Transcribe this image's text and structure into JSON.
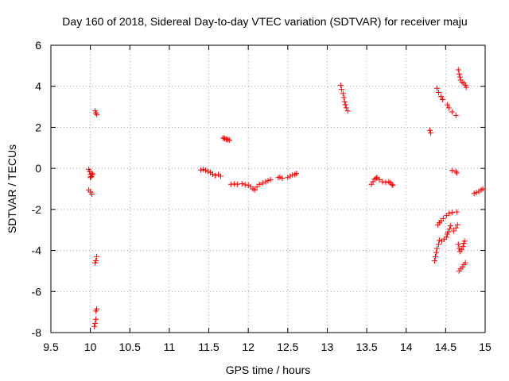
{
  "chart_data": {
    "type": "scatter",
    "title": "Day 160 of 2018, Sidereal Day-to-day VTEC variation (SDTVAR) for receiver maju",
    "xlabel": "GPS time / hours",
    "ylabel": "SDTVAR / TECUs",
    "xlim": [
      9.5,
      15
    ],
    "ylim": [
      -8,
      6
    ],
    "xticks": [
      "9.5",
      "10",
      "10.5",
      "11",
      "11.5",
      "12",
      "12.5",
      "13",
      "13.5",
      "14",
      "14.5",
      "15"
    ],
    "yticks": [
      "-8",
      "-6",
      "-4",
      "-2",
      "0",
      "2",
      "4",
      "6"
    ],
    "grid": true,
    "marker": "+",
    "color": "#ff0000",
    "series": [
      {
        "name": "SDTVAR",
        "points": [
          [
            9.98,
            -0.05
          ],
          [
            9.99,
            -0.15
          ],
          [
            10.0,
            -0.3
          ],
          [
            10.01,
            -0.4
          ],
          [
            10.02,
            -0.25
          ],
          [
            10.0,
            -0.45
          ],
          [
            10.03,
            -0.3
          ],
          [
            9.98,
            -1.05
          ],
          [
            10.0,
            -1.15
          ],
          [
            10.02,
            -1.25
          ],
          [
            10.06,
            2.8
          ],
          [
            10.07,
            2.7
          ],
          [
            10.08,
            2.62
          ],
          [
            10.06,
            -4.6
          ],
          [
            10.07,
            -4.5
          ],
          [
            10.08,
            -4.3
          ],
          [
            10.07,
            -6.95
          ],
          [
            10.08,
            -6.85
          ],
          [
            10.07,
            -7.35
          ],
          [
            10.06,
            -7.55
          ],
          [
            10.05,
            -7.7
          ],
          [
            11.4,
            -0.08
          ],
          [
            11.43,
            -0.05
          ],
          [
            11.46,
            -0.1
          ],
          [
            11.49,
            -0.15
          ],
          [
            11.52,
            -0.2
          ],
          [
            11.55,
            -0.28
          ],
          [
            11.58,
            -0.35
          ],
          [
            11.62,
            -0.3
          ],
          [
            11.65,
            -0.38
          ],
          [
            11.68,
            1.48
          ],
          [
            11.7,
            1.45
          ],
          [
            11.72,
            1.42
          ],
          [
            11.74,
            1.4
          ],
          [
            11.76,
            1.38
          ],
          [
            11.78,
            -0.78
          ],
          [
            11.82,
            -0.76
          ],
          [
            11.86,
            -0.78
          ],
          [
            11.92,
            -0.75
          ],
          [
            11.96,
            -0.8
          ],
          [
            12.0,
            -0.82
          ],
          [
            12.03,
            -0.9
          ],
          [
            12.06,
            -1.0
          ],
          [
            12.08,
            -1.05
          ],
          [
            12.11,
            -0.9
          ],
          [
            12.14,
            -0.78
          ],
          [
            12.18,
            -0.72
          ],
          [
            12.22,
            -0.65
          ],
          [
            12.25,
            -0.6
          ],
          [
            12.28,
            -0.55
          ],
          [
            12.38,
            -0.45
          ],
          [
            12.4,
            -0.42
          ],
          [
            12.43,
            -0.48
          ],
          [
            12.5,
            -0.45
          ],
          [
            12.53,
            -0.38
          ],
          [
            12.56,
            -0.32
          ],
          [
            12.59,
            -0.3
          ],
          [
            12.61,
            -0.25
          ],
          [
            13.17,
            4.05
          ],
          [
            13.18,
            3.85
          ],
          [
            13.2,
            3.65
          ],
          [
            13.21,
            3.45
          ],
          [
            13.22,
            3.25
          ],
          [
            13.23,
            3.1
          ],
          [
            13.24,
            2.95
          ],
          [
            13.26,
            2.8
          ],
          [
            13.56,
            -0.78
          ],
          [
            13.58,
            -0.65
          ],
          [
            13.6,
            -0.52
          ],
          [
            13.62,
            -0.48
          ],
          [
            13.63,
            -0.45
          ],
          [
            13.66,
            -0.55
          ],
          [
            13.7,
            -0.65
          ],
          [
            13.74,
            -0.68
          ],
          [
            13.78,
            -0.65
          ],
          [
            13.8,
            -0.7
          ],
          [
            13.82,
            -0.78
          ],
          [
            13.83,
            -0.82
          ],
          [
            14.3,
            1.85
          ],
          [
            14.31,
            1.72
          ],
          [
            14.39,
            3.9
          ],
          [
            14.41,
            3.7
          ],
          [
            14.44,
            3.5
          ],
          [
            14.46,
            3.35
          ],
          [
            14.52,
            3.1
          ],
          [
            14.54,
            2.95
          ],
          [
            14.58,
            2.75
          ],
          [
            14.63,
            2.58
          ],
          [
            14.58,
            -0.1
          ],
          [
            14.63,
            -0.15
          ],
          [
            14.64,
            -0.22
          ],
          [
            14.66,
            4.8
          ],
          [
            14.67,
            4.6
          ],
          [
            14.68,
            4.45
          ],
          [
            14.69,
            4.3
          ],
          [
            14.71,
            4.2
          ],
          [
            14.73,
            4.15
          ],
          [
            14.75,
            4.05
          ],
          [
            14.76,
            3.95
          ],
          [
            14.86,
            -1.22
          ],
          [
            14.89,
            -1.18
          ],
          [
            14.92,
            -1.12
          ],
          [
            14.95,
            -1.05
          ],
          [
            14.97,
            -1.0
          ],
          [
            14.36,
            -4.5
          ],
          [
            14.37,
            -4.3
          ],
          [
            14.38,
            -4.1
          ],
          [
            14.39,
            -3.9
          ],
          [
            14.41,
            -3.7
          ],
          [
            14.42,
            -3.5
          ],
          [
            14.4,
            -2.75
          ],
          [
            14.42,
            -2.65
          ],
          [
            14.44,
            -2.55
          ],
          [
            14.47,
            -2.45
          ],
          [
            14.45,
            -3.55
          ],
          [
            14.48,
            -3.45
          ],
          [
            14.51,
            -3.35
          ],
          [
            14.52,
            -3.2
          ],
          [
            14.53,
            -3.1
          ],
          [
            14.55,
            -2.95
          ],
          [
            14.56,
            -2.8
          ],
          [
            14.51,
            -2.3
          ],
          [
            14.54,
            -2.2
          ],
          [
            14.58,
            -2.15
          ],
          [
            14.64,
            -2.12
          ],
          [
            14.6,
            -3.05
          ],
          [
            14.63,
            -2.9
          ],
          [
            14.65,
            -2.75
          ],
          [
            14.66,
            -3.7
          ],
          [
            14.67,
            -3.9
          ],
          [
            14.68,
            -4.05
          ],
          [
            14.7,
            -3.95
          ],
          [
            14.72,
            -3.8
          ],
          [
            14.73,
            -3.65
          ],
          [
            14.74,
            -3.55
          ],
          [
            14.67,
            -5.0
          ],
          [
            14.69,
            -4.9
          ],
          [
            14.71,
            -4.8
          ],
          [
            14.73,
            -4.7
          ],
          [
            14.75,
            -4.6
          ]
        ]
      }
    ]
  }
}
